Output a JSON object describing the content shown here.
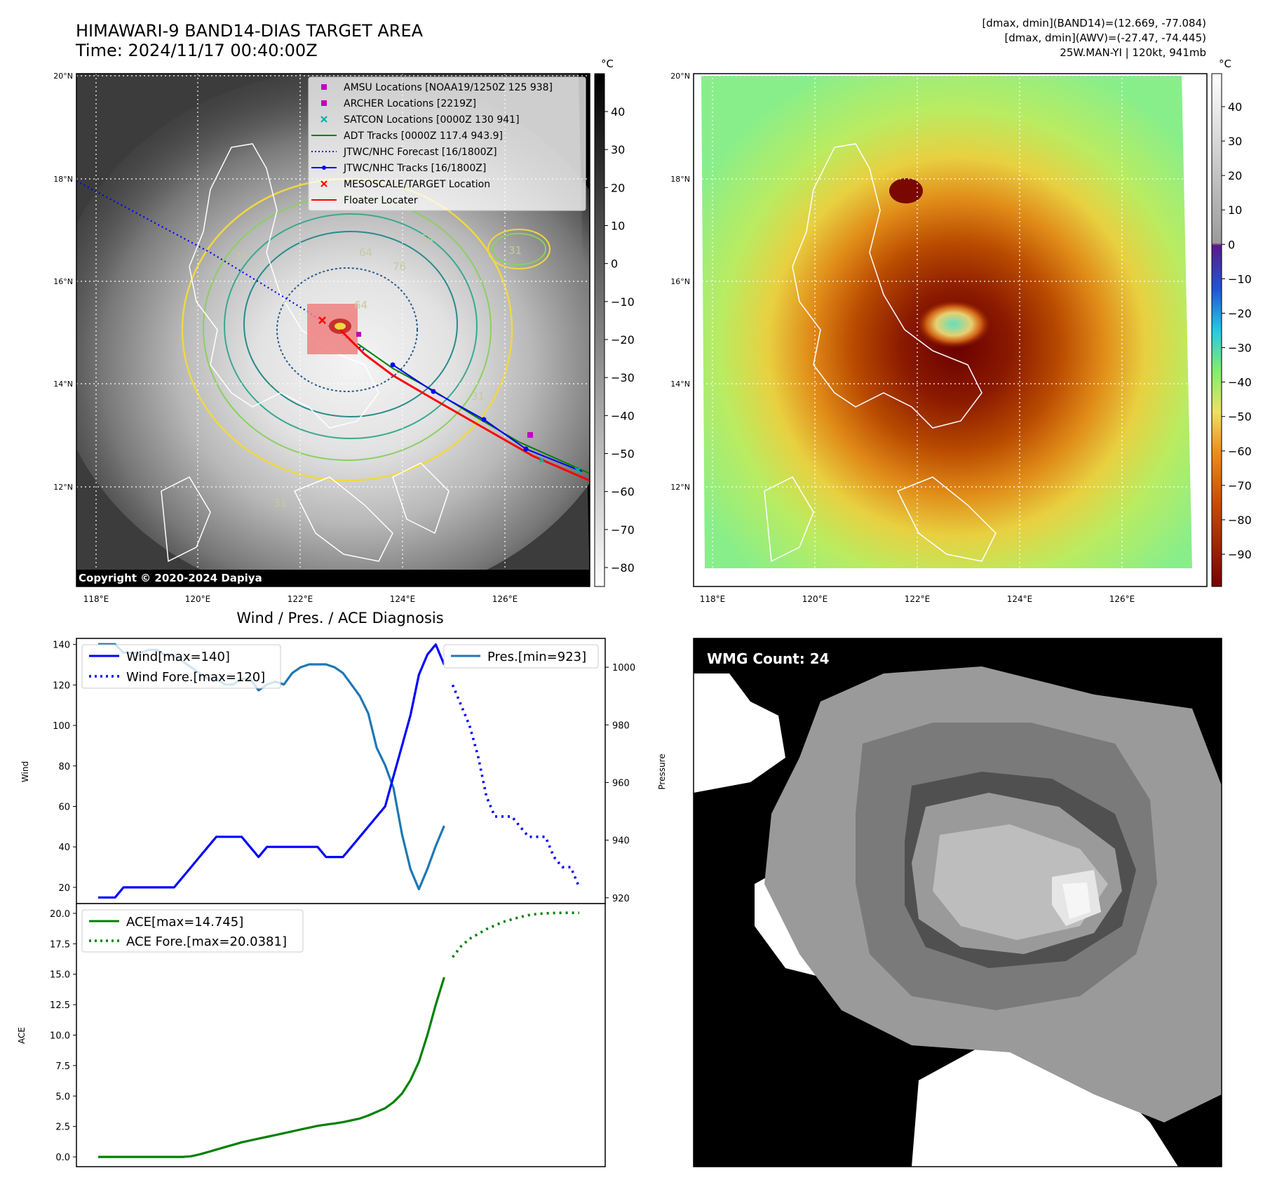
{
  "header": {
    "title_line1": "HIMAWARI-9 BAND14-DIAS TARGET AREA",
    "title_line2": "Time: 2024/11/17 00:40:00Z",
    "info_line1": "[dmax, dmin](BAND14)=(12.669, -77.084)",
    "info_line2": "[dmax, dmin](AWV)=(-27.47, -74.445)",
    "info_line3": "25W.MAN-YI | 120kt, 941mb"
  },
  "map_left": {
    "lat_labels": [
      "20°N",
      "18°N",
      "16°N",
      "14°N",
      "12°N"
    ],
    "lon_labels": [
      "118°E",
      "120°E",
      "122°E",
      "124°E",
      "126°E"
    ],
    "colorbar_unit": "°C",
    "colorbar_ticks": [
      "40",
      "30",
      "20",
      "10",
      "0",
      "−10",
      "−20",
      "−30",
      "−40",
      "−50",
      "−60",
      "−70",
      "−80"
    ],
    "copyright": "Copyright © 2020-2024 Dapiya",
    "contour_labels": [
      "31",
      "54",
      "64",
      "76",
      "64",
      "31",
      "31",
      "31"
    ],
    "legend": [
      {
        "label": "AMSU Locations [NOAA19/1250Z 125 938]",
        "color": "#c000c0",
        "marker": "square"
      },
      {
        "label": "ARCHER Locations [2219Z]",
        "color": "#c000c0",
        "marker": "square"
      },
      {
        "label": "SATCON Locations [0000Z 130 941]",
        "color": "#00b0b0",
        "marker": "x"
      },
      {
        "label": "ADT Tracks [0000Z 117.4 943.9]",
        "color": "#008000",
        "marker": "line"
      },
      {
        "label": "JTWC/NHC Forecast [16/1800Z]",
        "color": "#0000ff",
        "marker": "dotted"
      },
      {
        "label": "JTWC/NHC Tracks [16/1800Z]",
        "color": "#0000ff",
        "marker": "line-dot"
      },
      {
        "label": "MESOSCALE/TARGET Location",
        "color": "#ff0000",
        "marker": "x"
      },
      {
        "label": "Floater Locater",
        "color": "#ff0000",
        "marker": "line"
      }
    ]
  },
  "map_right": {
    "lat_labels": [
      "20°N",
      "18°N",
      "16°N",
      "14°N",
      "12°N"
    ],
    "lon_labels": [
      "118°E",
      "120°E",
      "122°E",
      "124°E",
      "126°E"
    ],
    "colorbar_unit": "°C",
    "colorbar_ticks": [
      "40",
      "30",
      "20",
      "10",
      "0",
      "−10",
      "−20",
      "−30",
      "−40",
      "−50",
      "−60",
      "−70",
      "−80",
      "−90"
    ]
  },
  "wmg": {
    "label": "WMG Count: 24"
  },
  "diagnosis": {
    "title": "Wind / Pres. / ACE Diagnosis",
    "wind_ylabel": "Wind",
    "pres_ylabel": "Pressure",
    "ace_ylabel": "ACE",
    "legend_wind": "Wind[max=140]",
    "legend_wind_fore": "Wind Fore.[max=120]",
    "legend_pres": "Pres.[min=923]",
    "legend_ace": "ACE[max=14.745]",
    "legend_ace_fore": "ACE Fore.[max=20.0381]"
  },
  "chart_data": [
    {
      "type": "line",
      "title": "Wind / Pres. / ACE Diagnosis",
      "xlabel": "",
      "ylabel": "Wind",
      "ylim": [
        12,
        143
      ],
      "ticks": [
        "20",
        "40",
        "60",
        "80",
        "100",
        "120",
        "140"
      ],
      "series": [
        {
          "name": "Wind[max=140]",
          "color": "#0000ff",
          "style": "solid",
          "x": [
            0,
            1,
            2,
            3,
            4,
            5,
            6,
            7,
            8,
            9,
            10,
            11,
            12,
            13,
            14,
            15,
            16,
            17,
            18,
            19,
            20,
            21,
            22,
            23,
            24,
            25,
            26,
            27,
            28,
            29,
            30,
            31,
            32,
            33,
            34,
            35,
            36,
            37,
            38,
            39,
            40,
            41
          ],
          "values": [
            15,
            15,
            15,
            20,
            20,
            20,
            20,
            20,
            20,
            20,
            25,
            30,
            35,
            40,
            45,
            45,
            45,
            45,
            40,
            35,
            40,
            40,
            40,
            40,
            40,
            40,
            40,
            35,
            35,
            35,
            40,
            45,
            50,
            55,
            60,
            75,
            90,
            105,
            125,
            135,
            140,
            130
          ]
        },
        {
          "name": "Wind Fore.[max=120]",
          "color": "#0000ff",
          "style": "dotted",
          "x": [
            42,
            43,
            44,
            45,
            46,
            47,
            48,
            49,
            50,
            51,
            52,
            53,
            54,
            55,
            56,
            57
          ],
          "values": [
            120,
            110,
            100,
            85,
            65,
            55,
            55,
            55,
            50,
            45,
            45,
            45,
            35,
            30,
            30,
            20
          ]
        },
        {
          "name": "Pres.[min=923]",
          "color": "#1f77b4",
          "style": "solid",
          "axis": "right",
          "ylim": [
            918,
            1010
          ],
          "ticks": [
            "920",
            "940",
            "960",
            "980",
            "1000"
          ],
          "x": [
            0,
            1,
            2,
            3,
            4,
            5,
            6,
            7,
            8,
            9,
            10,
            11,
            12,
            13,
            14,
            15,
            16,
            17,
            18,
            19,
            20,
            21,
            22,
            23,
            24,
            25,
            26,
            27,
            28,
            29,
            30,
            31,
            32,
            33,
            34,
            35,
            36,
            37,
            38,
            39,
            40,
            41
          ],
          "values": [
            1008,
            1008,
            1008,
            1005,
            1005,
            1005,
            1006,
            1006,
            1004,
            1004,
            1002,
            1000,
            998,
            996,
            996,
            994,
            994,
            996,
            996,
            992,
            994,
            995,
            994,
            998,
            1000,
            1001,
            1001,
            1001,
            1000,
            998,
            994,
            990,
            984,
            972,
            966,
            958,
            942,
            930,
            923,
            930,
            938,
            945
          ]
        }
      ]
    },
    {
      "type": "line",
      "xlabel": "",
      "ylabel": "ACE",
      "ylim": [
        -0.8,
        20.8
      ],
      "ticks": [
        "0.0",
        "2.5",
        "5.0",
        "7.5",
        "10.0",
        "12.5",
        "15.0",
        "17.5",
        "20.0"
      ],
      "series": [
        {
          "name": "ACE[max=14.745]",
          "color": "#008000",
          "style": "solid",
          "x": [
            0,
            2,
            4,
            6,
            8,
            10,
            11,
            12,
            13,
            14,
            15,
            16,
            17,
            18,
            19,
            20,
            21,
            22,
            23,
            24,
            25,
            26,
            27,
            28,
            29,
            30,
            31,
            32,
            33,
            34,
            35,
            36,
            37,
            38,
            39,
            40,
            41
          ],
          "values": [
            0,
            0,
            0,
            0,
            0,
            0,
            0.05,
            0.2,
            0.4,
            0.6,
            0.8,
            1.0,
            1.2,
            1.35,
            1.5,
            1.65,
            1.8,
            1.95,
            2.1,
            2.25,
            2.4,
            2.55,
            2.65,
            2.75,
            2.85,
            3.0,
            3.15,
            3.4,
            3.7,
            4.0,
            4.5,
            5.2,
            6.3,
            7.8,
            10.0,
            12.5,
            14.745
          ]
        },
        {
          "name": "ACE Fore.[max=20.0381]",
          "color": "#008000",
          "style": "dotted",
          "x": [
            42,
            43,
            44,
            45,
            46,
            47,
            48,
            49,
            50,
            51,
            52,
            53,
            54,
            55,
            56,
            57
          ],
          "values": [
            16.4,
            17.3,
            17.9,
            18.3,
            18.7,
            19.0,
            19.3,
            19.5,
            19.7,
            19.85,
            19.95,
            20.0,
            20.03,
            20.04,
            20.04,
            20.04
          ]
        }
      ]
    }
  ]
}
